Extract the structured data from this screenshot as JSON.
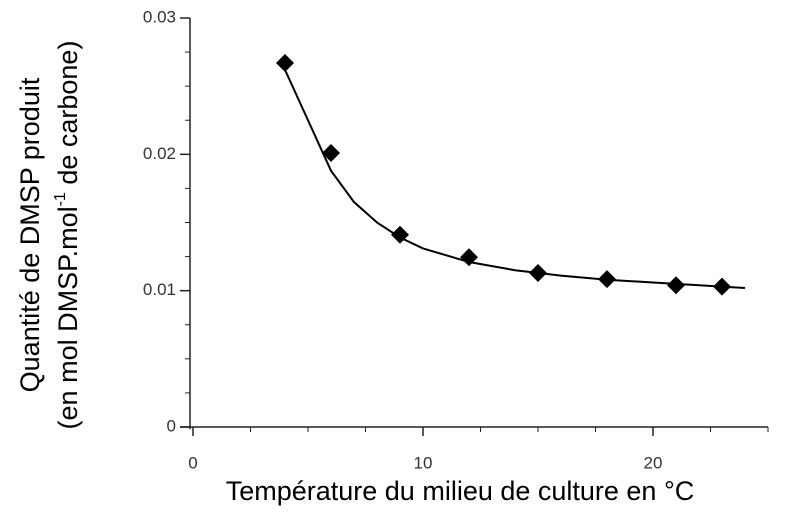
{
  "chart_data": {
    "type": "scatter",
    "xlabel": "Température du milieu de culture en °C",
    "ylabel": [
      "Quantité de DMSP produit",
      "(en mol DMSP.mol",
      "-1",
      " de carbone)"
    ],
    "xlim": [
      0,
      25
    ],
    "ylim": [
      0,
      0.03
    ],
    "xticks": [
      0,
      10,
      20
    ],
    "yticks": [
      0,
      0.01,
      0.02,
      0.03
    ],
    "xminorticks": [
      2.5,
      5,
      7.5,
      12.5,
      15,
      17.5,
      22.5,
      25
    ],
    "yminorticks": [
      0.0025,
      0.005,
      0.0075,
      0.0125,
      0.015,
      0.0175,
      0.0225,
      0.025,
      0.0275
    ],
    "series": [
      {
        "kind": "points",
        "color": "#000000",
        "x": [
          4,
          6,
          9,
          12,
          15,
          18,
          21,
          23
        ],
        "values": [
          0.0267,
          0.0201,
          0.0141,
          0.01245,
          0.0113,
          0.01085,
          0.0104,
          0.0103
        ]
      },
      {
        "kind": "curve",
        "color": "#000000",
        "x": [
          4,
          5,
          6,
          7,
          8,
          9,
          10,
          12,
          14,
          16,
          18,
          20,
          22,
          24
        ],
        "values": [
          0.0262,
          0.0225,
          0.0188,
          0.0165,
          0.015,
          0.0139,
          0.0131,
          0.0121,
          0.0115,
          0.0111,
          0.0108,
          0.0106,
          0.0104,
          0.0102
        ]
      }
    ]
  }
}
